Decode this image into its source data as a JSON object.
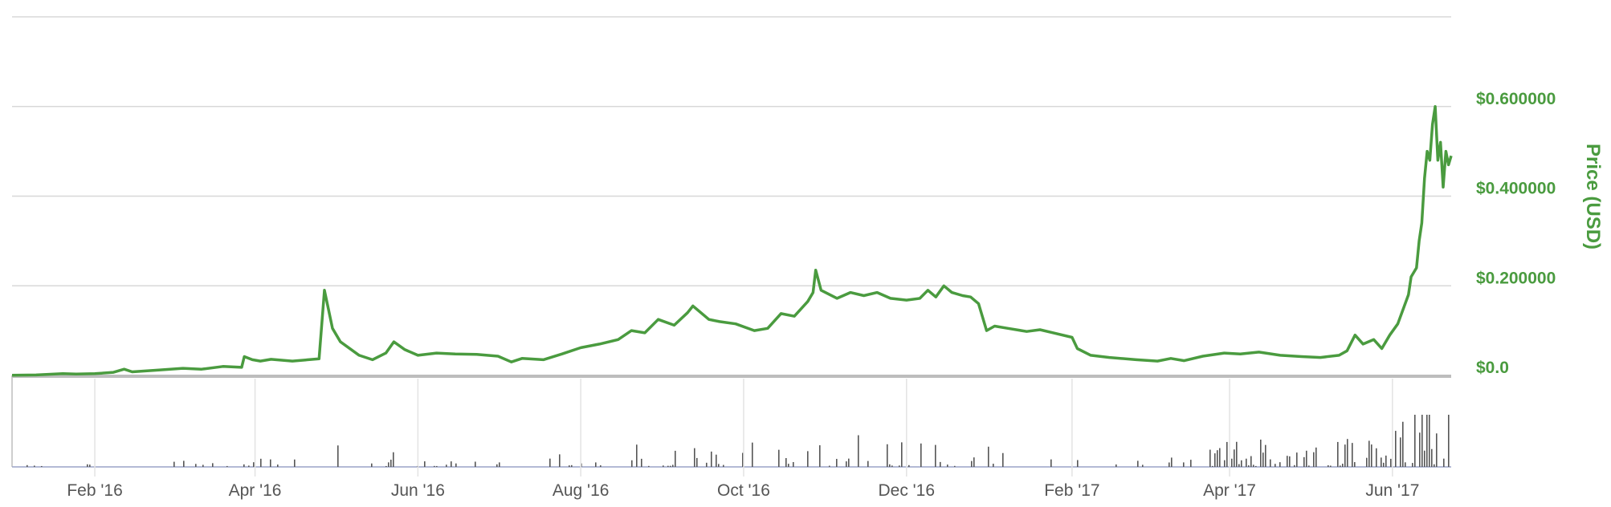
{
  "chart_data": {
    "type": "line",
    "ylabel": "Price (USD)",
    "ylim": [
      0,
      0.8
    ],
    "y_ticks": [
      {
        "value": 0,
        "label": "$0.0"
      },
      {
        "value": 0.2,
        "label": "$0.200000"
      },
      {
        "value": 0.4,
        "label": "$0.400000"
      },
      {
        "value": 0.6,
        "label": "$0.600000"
      }
    ],
    "x_range": [
      "2016-01-01",
      "2017-06-23"
    ],
    "x_ticks": [
      {
        "date": "2016-02-01",
        "label": "Feb '16"
      },
      {
        "date": "2016-04-01",
        "label": "Apr '16"
      },
      {
        "date": "2016-06-01",
        "label": "Jun '16"
      },
      {
        "date": "2016-08-01",
        "label": "Aug '16"
      },
      {
        "date": "2016-10-01",
        "label": "Oct '16"
      },
      {
        "date": "2016-12-01",
        "label": "Dec '16"
      },
      {
        "date": "2017-02-01",
        "label": "Feb '17"
      },
      {
        "date": "2017-04-01",
        "label": "Apr '17"
      },
      {
        "date": "2017-06-01",
        "label": "Jun '17"
      }
    ],
    "grid": true,
    "colors": {
      "price": "#4a9b3f",
      "volume": "#555555",
      "grid": "#d8d8d8"
    },
    "series": [
      {
        "values": [
          [
            "2016-01-01",
            0.0005
          ],
          [
            "2016-01-10",
            0.001
          ],
          [
            "2016-01-20",
            0.004
          ],
          [
            "2016-01-25",
            0.003
          ],
          [
            "2016-02-01",
            0.004
          ],
          [
            "2016-02-08",
            0.007
          ],
          [
            "2016-02-12",
            0.014
          ],
          [
            "2016-02-15",
            0.008
          ],
          [
            "2016-02-25",
            0.012
          ],
          [
            "2016-03-05",
            0.016
          ],
          [
            "2016-03-12",
            0.014
          ],
          [
            "2016-03-20",
            0.02
          ],
          [
            "2016-03-27",
            0.018
          ],
          [
            "2016-03-28",
            0.042
          ],
          [
            "2016-03-31",
            0.035
          ],
          [
            "2016-04-03",
            0.032
          ],
          [
            "2016-04-07",
            0.036
          ],
          [
            "2016-04-15",
            0.032
          ],
          [
            "2016-04-25",
            0.037
          ],
          [
            "2016-04-27",
            0.19
          ],
          [
            "2016-04-30",
            0.105
          ],
          [
            "2016-05-03",
            0.075
          ],
          [
            "2016-05-10",
            0.045
          ],
          [
            "2016-05-15",
            0.035
          ],
          [
            "2016-05-20",
            0.05
          ],
          [
            "2016-05-23",
            0.075
          ],
          [
            "2016-05-27",
            0.058
          ],
          [
            "2016-06-01",
            0.045
          ],
          [
            "2016-06-08",
            0.05
          ],
          [
            "2016-06-15",
            0.048
          ],
          [
            "2016-06-23",
            0.047
          ],
          [
            "2016-07-01",
            0.043
          ],
          [
            "2016-07-06",
            0.03
          ],
          [
            "2016-07-10",
            0.038
          ],
          [
            "2016-07-18",
            0.035
          ],
          [
            "2016-07-25",
            0.048
          ],
          [
            "2016-08-01",
            0.062
          ],
          [
            "2016-08-08",
            0.07
          ],
          [
            "2016-08-15",
            0.08
          ],
          [
            "2016-08-20",
            0.1
          ],
          [
            "2016-08-25",
            0.095
          ],
          [
            "2016-08-30",
            0.125
          ],
          [
            "2016-09-05",
            0.112
          ],
          [
            "2016-09-10",
            0.14
          ],
          [
            "2016-09-12",
            0.155
          ],
          [
            "2016-09-18",
            0.125
          ],
          [
            "2016-09-22",
            0.12
          ],
          [
            "2016-09-28",
            0.115
          ],
          [
            "2016-10-05",
            0.1
          ],
          [
            "2016-10-10",
            0.105
          ],
          [
            "2016-10-15",
            0.138
          ],
          [
            "2016-10-20",
            0.132
          ],
          [
            "2016-10-25",
            0.165
          ],
          [
            "2016-10-27",
            0.185
          ],
          [
            "2016-10-28",
            0.235
          ],
          [
            "2016-10-30",
            0.19
          ],
          [
            "2016-11-05",
            0.172
          ],
          [
            "2016-11-10",
            0.185
          ],
          [
            "2016-11-15",
            0.178
          ],
          [
            "2016-11-20",
            0.185
          ],
          [
            "2016-11-25",
            0.172
          ],
          [
            "2016-12-01",
            0.168
          ],
          [
            "2016-12-06",
            0.172
          ],
          [
            "2016-12-09",
            0.19
          ],
          [
            "2016-12-12",
            0.175
          ],
          [
            "2016-12-15",
            0.2
          ],
          [
            "2016-12-18",
            0.185
          ],
          [
            "2016-12-22",
            0.178
          ],
          [
            "2016-12-25",
            0.175
          ],
          [
            "2016-12-28",
            0.16
          ],
          [
            "2016-12-31",
            0.1
          ],
          [
            "2017-01-03",
            0.11
          ],
          [
            "2017-01-08",
            0.105
          ],
          [
            "2017-01-15",
            0.098
          ],
          [
            "2017-01-20",
            0.102
          ],
          [
            "2017-01-25",
            0.095
          ],
          [
            "2017-02-01",
            0.085
          ],
          [
            "2017-02-03",
            0.06
          ],
          [
            "2017-02-08",
            0.045
          ],
          [
            "2017-02-15",
            0.04
          ],
          [
            "2017-02-25",
            0.035
          ],
          [
            "2017-03-05",
            0.032
          ],
          [
            "2017-03-10",
            0.038
          ],
          [
            "2017-03-15",
            0.033
          ],
          [
            "2017-03-22",
            0.043
          ],
          [
            "2017-03-30",
            0.05
          ],
          [
            "2017-04-05",
            0.048
          ],
          [
            "2017-04-12",
            0.052
          ],
          [
            "2017-04-20",
            0.045
          ],
          [
            "2017-04-28",
            0.042
          ],
          [
            "2017-05-05",
            0.04
          ],
          [
            "2017-05-12",
            0.045
          ],
          [
            "2017-05-15",
            0.055
          ],
          [
            "2017-05-18",
            0.09
          ],
          [
            "2017-05-21",
            0.07
          ],
          [
            "2017-05-25",
            0.08
          ],
          [
            "2017-05-28",
            0.06
          ],
          [
            "2017-05-31",
            0.09
          ],
          [
            "2017-06-03",
            0.115
          ],
          [
            "2017-06-07",
            0.18
          ],
          [
            "2017-06-08",
            0.22
          ],
          [
            "2017-06-10",
            0.24
          ],
          [
            "2017-06-11",
            0.3
          ],
          [
            "2017-06-12",
            0.34
          ],
          [
            "2017-06-13",
            0.44
          ],
          [
            "2017-06-14",
            0.5
          ],
          [
            "2017-06-15",
            0.48
          ],
          [
            "2017-06-16",
            0.56
          ],
          [
            "2017-06-17",
            0.6
          ],
          [
            "2017-06-18",
            0.48
          ],
          [
            "2017-06-19",
            0.52
          ],
          [
            "2017-06-20",
            0.42
          ],
          [
            "2017-06-21",
            0.5
          ],
          [
            "2017-06-22",
            0.47
          ],
          [
            "2017-06-23",
            0.49
          ]
        ]
      }
    ]
  }
}
